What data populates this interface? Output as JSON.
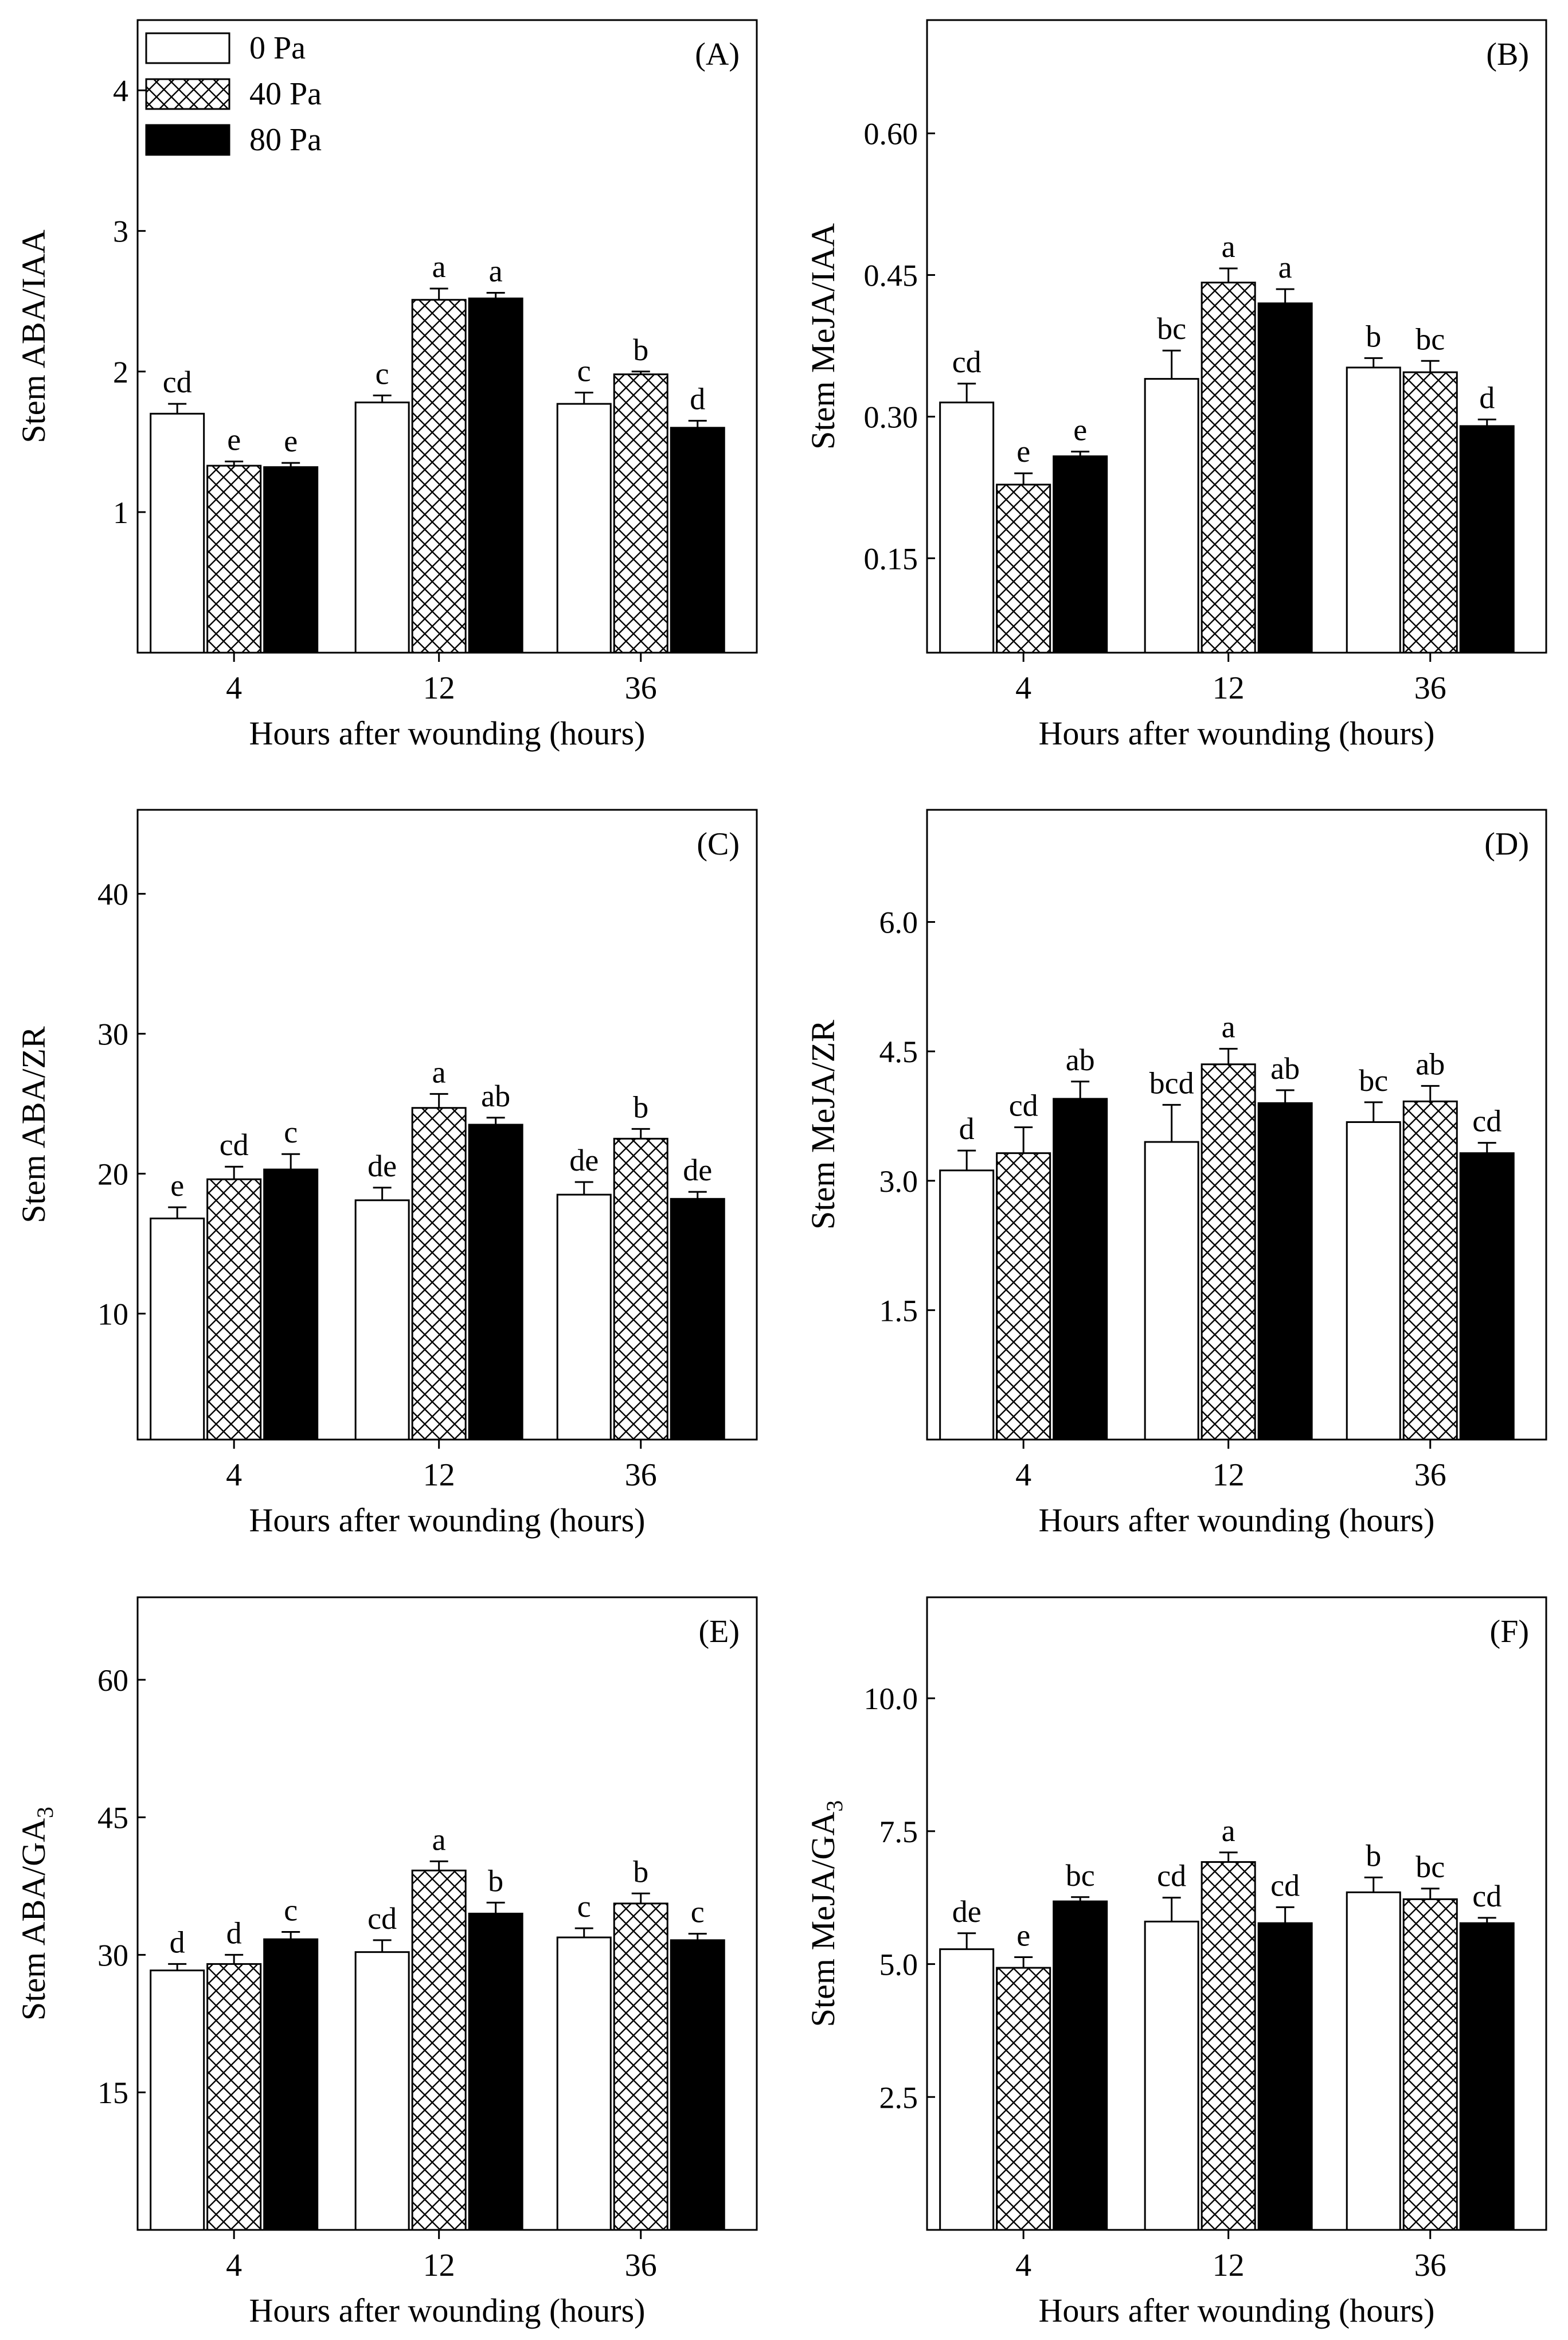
{
  "legend": {
    "entries": [
      {
        "label": "0   Pa",
        "pattern": "open"
      },
      {
        "label": "40 Pa",
        "pattern": "crosshatch"
      },
      {
        "label": "80 Pa",
        "pattern": "solid"
      }
    ]
  },
  "colors": {
    "line": "#000000",
    "solid_fill": "#000000",
    "open_fill": "#ffffff"
  },
  "chart_data": [
    {
      "panel": "(A)",
      "type": "bar",
      "ylabel": "Stem ABA/IAA",
      "xlabel": "Hours after wounding (hours)",
      "categories": [
        "4",
        "12",
        "36"
      ],
      "ylim": [
        0,
        4.5
      ],
      "yticks": [
        "1",
        "2",
        "3",
        "4"
      ],
      "series": [
        {
          "name": "0   Pa",
          "values": [
            1.7,
            1.78,
            1.77
          ],
          "errors": [
            0.07,
            0.05,
            0.08
          ],
          "letters": [
            "cd",
            "c",
            "c"
          ]
        },
        {
          "name": "40 Pa",
          "values": [
            1.33,
            2.51,
            1.98
          ],
          "errors": [
            0.03,
            0.08,
            0.02
          ],
          "letters": [
            "e",
            "a",
            "b"
          ]
        },
        {
          "name": "80 Pa",
          "values": [
            1.32,
            2.52,
            1.6
          ],
          "errors": [
            0.03,
            0.04,
            0.05
          ],
          "letters": [
            "e",
            "a",
            "d"
          ]
        }
      ]
    },
    {
      "panel": "(B)",
      "type": "bar",
      "ylabel": "Stem MeJA/IAA",
      "xlabel": "Hours after wounding (hours)",
      "categories": [
        "4",
        "12",
        "36"
      ],
      "ylim": [
        0.05,
        0.72
      ],
      "yticks": [
        "0.15",
        "0.30",
        "0.45",
        "0.60"
      ],
      "series": [
        {
          "name": "0   Pa",
          "values": [
            0.315,
            0.34,
            0.352
          ],
          "errors": [
            0.02,
            0.03,
            0.01
          ],
          "letters": [
            "cd",
            "bc",
            "b"
          ]
        },
        {
          "name": "40 Pa",
          "values": [
            0.228,
            0.442,
            0.347
          ],
          "errors": [
            0.012,
            0.015,
            0.012
          ],
          "letters": [
            "e",
            "a",
            "bc"
          ]
        },
        {
          "name": "80 Pa",
          "values": [
            0.258,
            0.42,
            0.29
          ],
          "errors": [
            0.005,
            0.015,
            0.007
          ],
          "letters": [
            "e",
            "a",
            "d"
          ]
        }
      ]
    },
    {
      "panel": "(C)",
      "type": "bar",
      "ylabel": "Stem ABA/ZR",
      "xlabel": "Hours after wounding (hours)",
      "categories": [
        "4",
        "12",
        "36"
      ],
      "ylim": [
        1,
        46
      ],
      "yticks": [
        "10",
        "20",
        "30",
        "40"
      ],
      "series": [
        {
          "name": "0   Pa",
          "values": [
            16.8,
            18.1,
            18.5
          ],
          "errors": [
            0.8,
            0.9,
            0.9
          ],
          "letters": [
            "e",
            "de",
            "de"
          ]
        },
        {
          "name": "40 Pa",
          "values": [
            19.6,
            24.7,
            22.5
          ],
          "errors": [
            0.9,
            1.0,
            0.7
          ],
          "letters": [
            "cd",
            "a",
            "b"
          ]
        },
        {
          "name": "80 Pa",
          "values": [
            20.3,
            23.5,
            18.2
          ],
          "errors": [
            1.1,
            0.5,
            0.5
          ],
          "letters": [
            "c",
            "ab",
            "de"
          ]
        }
      ]
    },
    {
      "panel": "(D)",
      "type": "bar",
      "ylabel": "Stem MeJA/ZR",
      "xlabel": "Hours after wounding (hours)",
      "categories": [
        "4",
        "12",
        "36"
      ],
      "ylim": [
        0,
        7.3
      ],
      "yticks": [
        "1.5",
        "3.0",
        "4.5",
        "6.0"
      ],
      "series": [
        {
          "name": "0   Pa",
          "values": [
            3.12,
            3.45,
            3.68
          ],
          "errors": [
            0.23,
            0.43,
            0.23
          ],
          "letters": [
            "d",
            "bcd",
            "bc"
          ]
        },
        {
          "name": "40 Pa",
          "values": [
            3.32,
            4.35,
            3.92
          ],
          "errors": [
            0.3,
            0.18,
            0.18
          ],
          "letters": [
            "cd",
            "a",
            "ab"
          ]
        },
        {
          "name": "80 Pa",
          "values": [
            3.95,
            3.9,
            3.32
          ],
          "errors": [
            0.2,
            0.15,
            0.12
          ],
          "letters": [
            "ab",
            "ab",
            "cd"
          ]
        }
      ]
    },
    {
      "panel": "(E)",
      "type": "bar",
      "ylabel": "Stem ABA/GA3",
      "xlabel": "Hours after wounding (hours)",
      "categories": [
        "4",
        "12",
        "36"
      ],
      "ylim": [
        0,
        69
      ],
      "yticks": [
        "15",
        "30",
        "45",
        "60"
      ],
      "series": [
        {
          "name": "0   Pa",
          "values": [
            28.3,
            30.3,
            31.9
          ],
          "errors": [
            0.7,
            1.3,
            1.0
          ],
          "letters": [
            "d",
            "cd",
            "c"
          ]
        },
        {
          "name": "40 Pa",
          "values": [
            29.0,
            39.2,
            35.6
          ],
          "errors": [
            1.0,
            1.0,
            1.1
          ],
          "letters": [
            "d",
            "a",
            "b"
          ]
        },
        {
          "name": "80 Pa",
          "values": [
            31.7,
            34.5,
            31.6
          ],
          "errors": [
            0.8,
            1.2,
            0.7
          ],
          "letters": [
            "c",
            "b",
            "c"
          ]
        }
      ]
    },
    {
      "panel": "(F)",
      "type": "bar",
      "ylabel": "Stem MeJA/GA3",
      "xlabel": "Hours after wounding (hours)",
      "categories": [
        "4",
        "12",
        "36"
      ],
      "ylim": [
        0,
        11.9
      ],
      "yticks": [
        "2.5",
        "5.0",
        "7.5",
        "10.0"
      ],
      "series": [
        {
          "name": "0   Pa",
          "values": [
            5.28,
            5.8,
            6.35
          ],
          "errors": [
            0.3,
            0.45,
            0.28
          ],
          "letters": [
            "de",
            "cd",
            "b"
          ]
        },
        {
          "name": "40 Pa",
          "values": [
            4.93,
            6.92,
            6.22
          ],
          "errors": [
            0.2,
            0.18,
            0.2
          ],
          "letters": [
            "e",
            "a",
            "bc"
          ]
        },
        {
          "name": "80 Pa",
          "values": [
            6.18,
            5.77,
            5.77
          ],
          "errors": [
            0.08,
            0.3,
            0.1
          ],
          "letters": [
            "bc",
            "cd",
            "cd"
          ]
        }
      ]
    }
  ]
}
